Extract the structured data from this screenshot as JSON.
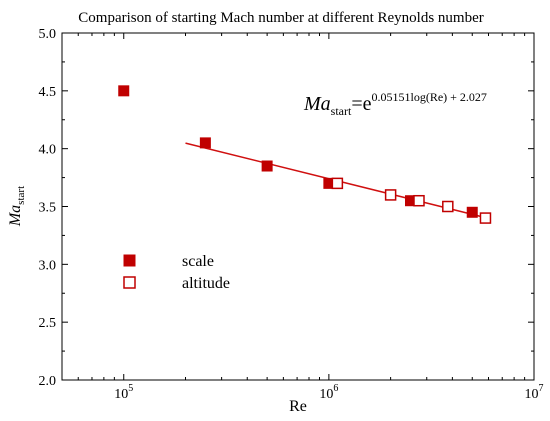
{
  "chart_data": {
    "type": "scatter",
    "title": "Comparison of starting Mach number at different Reynolds number",
    "xlabel": "Re",
    "ylabel": {
      "main": "Ma",
      "subscript": "start"
    },
    "xscale": "log",
    "xlim": [
      50000,
      10000000
    ],
    "ylim": [
      2.0,
      5.0
    ],
    "y_ticks": [
      "2.0",
      "2.5",
      "3.0",
      "3.5",
      "4.0",
      "4.5",
      "5.0"
    ],
    "x_ticks": [
      {
        "value": 100000,
        "base": "10",
        "exp": "5"
      },
      {
        "value": 1000000,
        "base": "10",
        "exp": "6"
      },
      {
        "value": 10000000,
        "base": "10",
        "exp": "7"
      }
    ],
    "series": [
      {
        "name": "scale",
        "marker": "filled-square",
        "color": "#c00000",
        "points": [
          {
            "x": 100000,
            "y": 4.5
          },
          {
            "x": 250000,
            "y": 4.05
          },
          {
            "x": 500000,
            "y": 3.85
          },
          {
            "x": 1000000,
            "y": 3.7
          },
          {
            "x": 2500000,
            "y": 3.55
          },
          {
            "x": 5000000,
            "y": 3.45
          }
        ]
      },
      {
        "name": "altitude",
        "marker": "open-square",
        "color": "#c00000",
        "points": [
          {
            "x": 1100000,
            "y": 3.7
          },
          {
            "x": 2000000,
            "y": 3.6
          },
          {
            "x": 2750000,
            "y": 3.55
          },
          {
            "x": 3800000,
            "y": 3.5
          },
          {
            "x": 5800000,
            "y": 3.4
          }
        ]
      }
    ],
    "fit_line": {
      "x_start": 200000,
      "x_end": 5800000,
      "color": "#d01010"
    },
    "equation": {
      "lhs_main": "Ma",
      "lhs_sub": "start",
      "equals_base": "=e",
      "exponent": "0.05151log(Re) + 2.027"
    },
    "legend_position": "left-middle",
    "grid": false
  }
}
